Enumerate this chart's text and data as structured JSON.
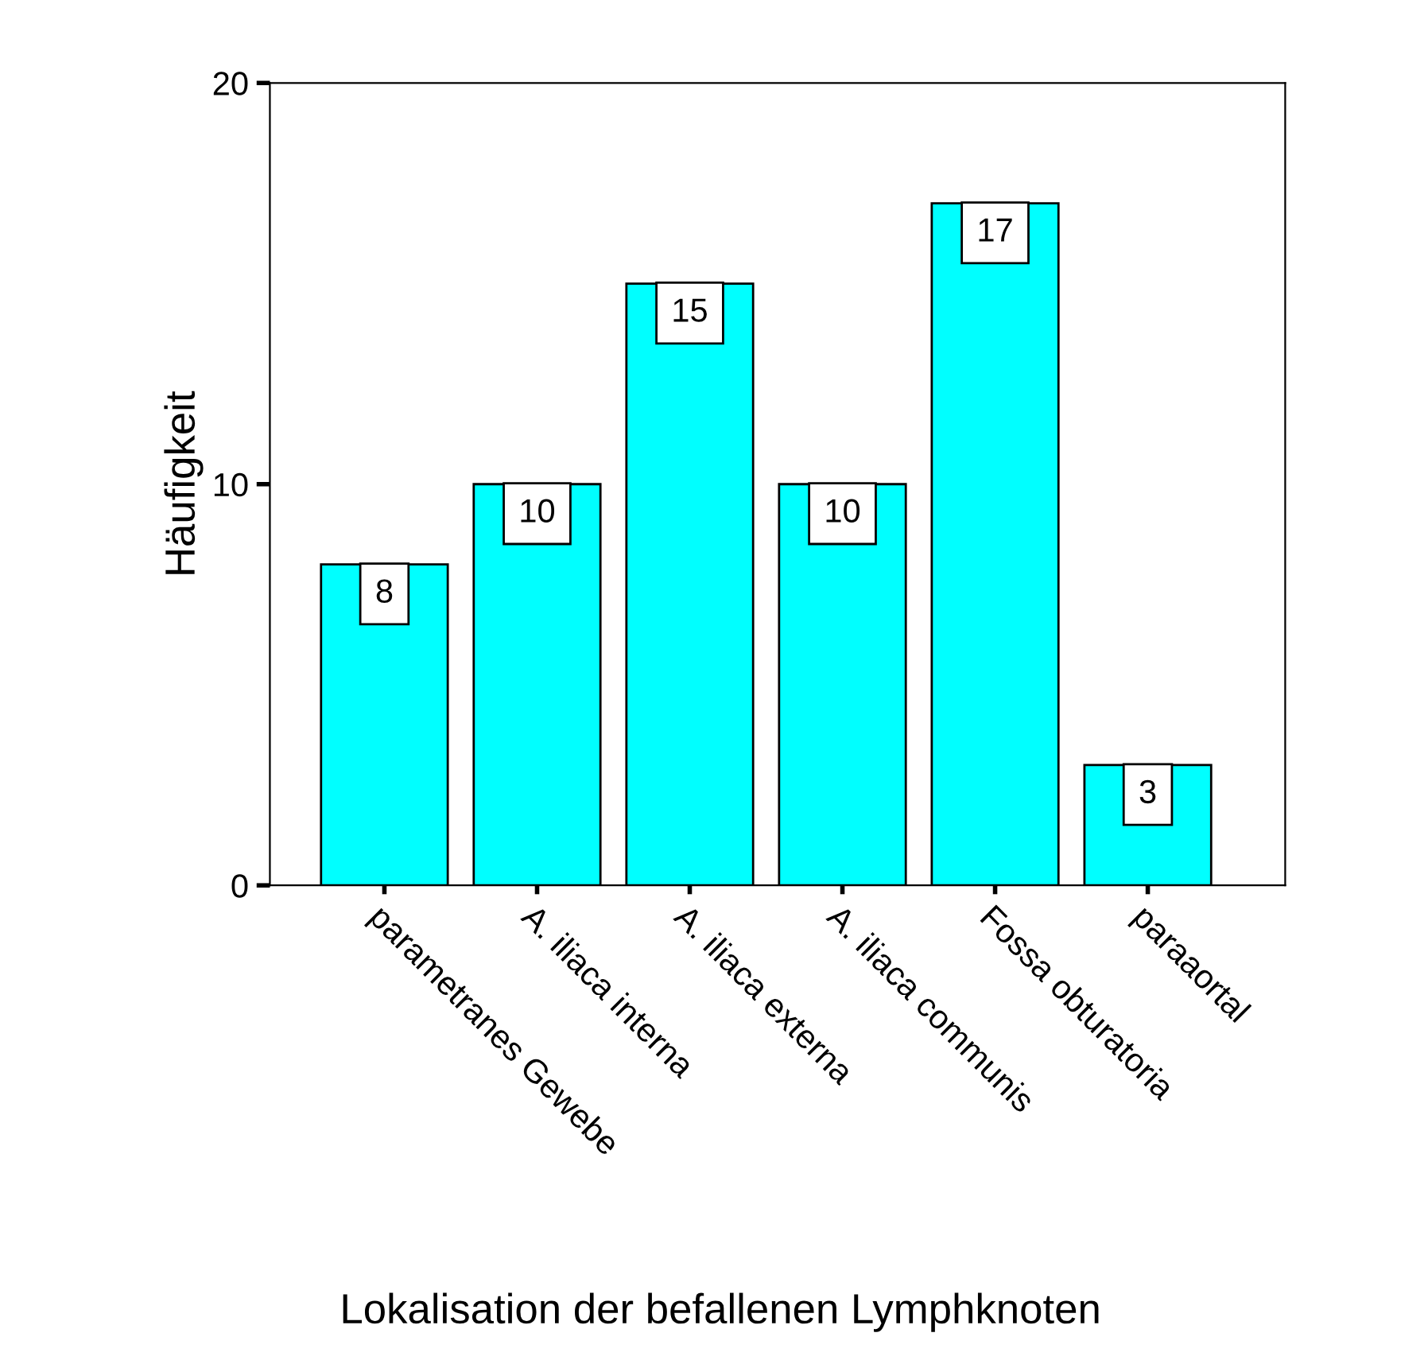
{
  "chart_data": {
    "type": "bar",
    "xlabel": "Lokalisation der befallenen Lymphknoten",
    "ylabel": "Häufigkeit",
    "categories": [
      "parametranes Gewebe",
      "A. iliaca interna",
      "A. iliaca externa",
      "A. iliaca communis",
      "Fossa obturatoria",
      "paraaortal"
    ],
    "values": [
      8,
      10,
      15,
      10,
      17,
      3
    ],
    "color": "#00ffff",
    "ylim": [
      0,
      20
    ],
    "yticks": [
      0,
      10,
      20
    ],
    "data_labels": true,
    "grid": false,
    "legend": false
  }
}
